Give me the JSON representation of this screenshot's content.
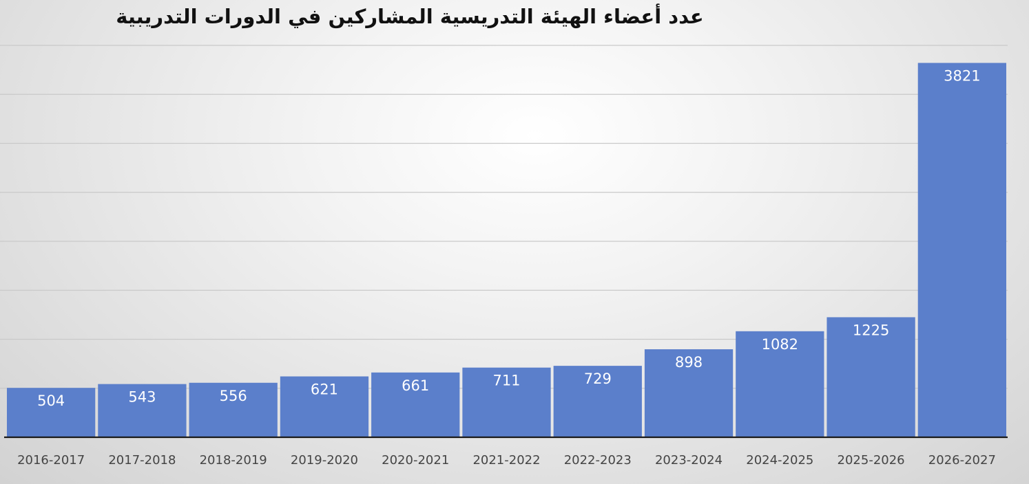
{
  "chart_data": {
    "type": "bar",
    "title": "عدد أعضاء الهيئة التدريسية المشاركين في الدورات التدريبية",
    "categories": [
      "2016-2017",
      "2017-2018",
      "2018-2019",
      "2019-2020",
      "2020-2021",
      "2021-2022",
      "2022-2023",
      "2023-2024",
      "2024-2025",
      "2025-2026",
      "2026-2027"
    ],
    "values": [
      504,
      543,
      556,
      621,
      661,
      711,
      729,
      898,
      1082,
      1225,
      3821
    ],
    "data_labels": [
      "504",
      "543",
      "556",
      "621",
      "661",
      "711",
      "729",
      "898",
      "1082",
      "1225",
      "3821"
    ],
    "xlabel": "",
    "ylabel": "",
    "ylim": [
      0,
      4000
    ],
    "grid": true,
    "legend": "none",
    "bar_color": "#5b7fcb",
    "axis_color": "#1a1a1a",
    "grid_color": "#c9c9c9"
  }
}
